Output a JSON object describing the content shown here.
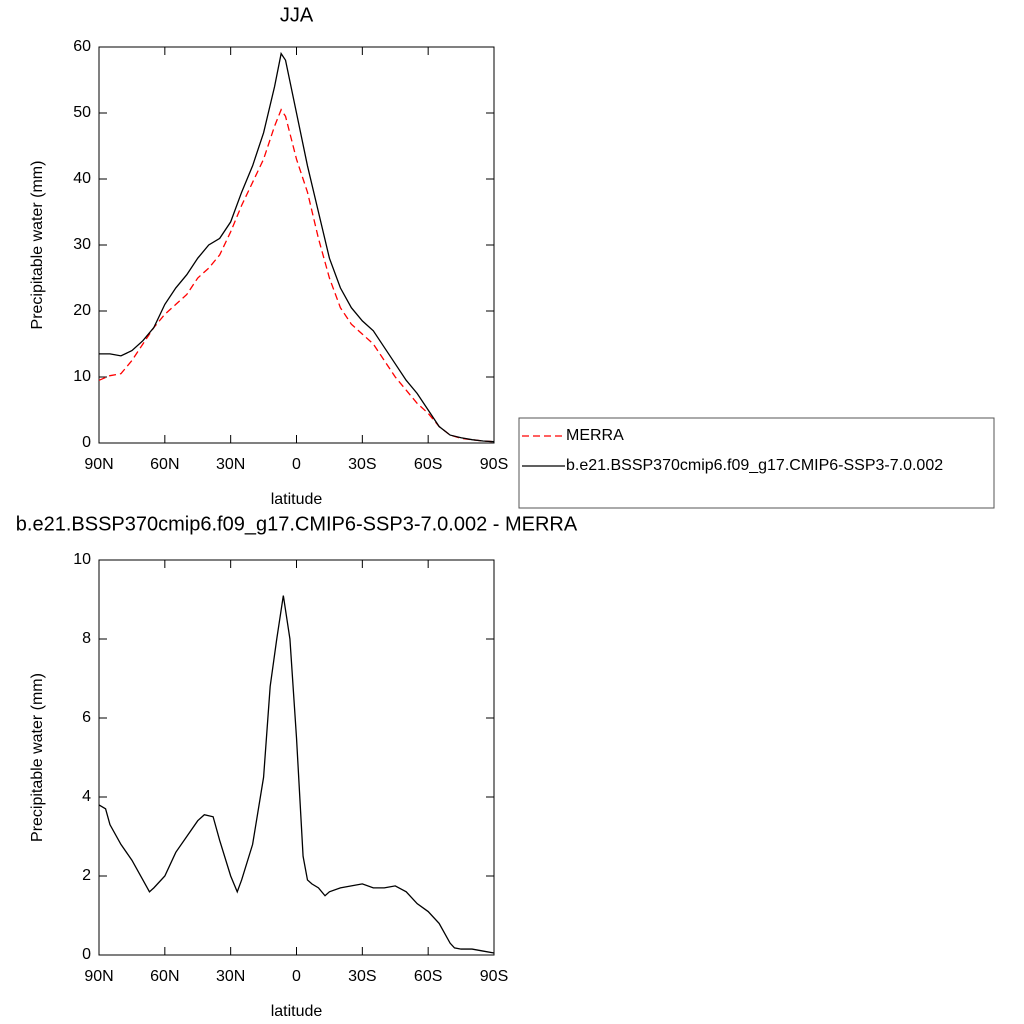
{
  "chart_data": [
    {
      "type": "line",
      "title": "JJA",
      "xlabel": "latitude",
      "ylabel": "Precipitable water (mm)",
      "x": [
        90,
        85,
        80,
        75,
        70,
        65,
        60,
        55,
        50,
        45,
        40,
        35,
        30,
        25,
        20,
        15,
        10,
        7,
        5,
        0,
        -5,
        -10,
        -15,
        -20,
        -25,
        -30,
        -35,
        -40,
        -45,
        -50,
        -55,
        -60,
        -65,
        -70,
        -75,
        -80,
        -85,
        -90
      ],
      "series": [
        {
          "name": "MERRA",
          "color": "#ff0000",
          "dashed": true,
          "values": [
            9.5,
            10.2,
            10.5,
            12.5,
            15,
            17.5,
            19.5,
            21,
            22.5,
            25,
            26.5,
            28.5,
            32,
            36,
            39.5,
            43,
            48,
            50.5,
            49.5,
            43,
            38,
            31,
            25,
            20.5,
            18,
            16.5,
            15,
            12.5,
            10,
            8,
            6,
            4.5,
            2.5,
            1.2,
            0.7,
            0.5,
            0.3,
            0.2
          ]
        },
        {
          "name": "b.e21.BSSP370cmip6.f09_g17.CMIP6-SSP3-7.0.002",
          "color": "#000000",
          "dashed": false,
          "values": [
            13.5,
            13.5,
            13.2,
            14,
            15.5,
            17.5,
            21,
            23.5,
            25.5,
            28,
            30,
            31,
            33.5,
            38,
            42,
            47,
            54,
            59,
            58,
            50,
            42,
            35,
            28,
            23.5,
            20.5,
            18.5,
            17,
            14.5,
            12,
            9.5,
            7.5,
            5,
            2.5,
            1.2,
            0.8,
            0.5,
            0.3,
            0.2
          ]
        }
      ],
      "xlim": [
        90,
        -90
      ],
      "xticks": [
        {
          "value": 90,
          "label": "90N"
        },
        {
          "value": 60,
          "label": "60N"
        },
        {
          "value": 30,
          "label": "30N"
        },
        0,
        {
          "value": -30,
          "label": "30S"
        },
        {
          "value": -60,
          "label": "60S"
        },
        {
          "value": -90,
          "label": "90S"
        }
      ],
      "ylim": [
        0,
        60
      ],
      "yticks": [
        0,
        10,
        20,
        30,
        40,
        50,
        60
      ],
      "legend": "right"
    },
    {
      "type": "line",
      "title": "b.e21.BSSP370cmip6.f09_g17.CMIP6-SSP3-7.0.002 - MERRA",
      "xlabel": "latitude",
      "ylabel": "Precipitable water (mm)",
      "x": [
        90,
        87,
        85,
        80,
        75,
        70,
        67,
        65,
        60,
        55,
        50,
        45,
        42,
        38,
        35,
        30,
        27,
        25,
        20,
        15,
        12,
        9,
        6,
        3,
        0,
        -3,
        -5,
        -7,
        -10,
        -13,
        -15,
        -20,
        -25,
        -30,
        -35,
        -40,
        -45,
        -50,
        -55,
        -60,
        -65,
        -70,
        -72,
        -75,
        -80,
        -85,
        -90
      ],
      "series": [
        {
          "name": null,
          "color": "#000000",
          "dashed": false,
          "values": [
            3.8,
            3.7,
            3.3,
            2.8,
            2.4,
            1.9,
            1.6,
            1.7,
            2.0,
            2.6,
            3.0,
            3.4,
            3.55,
            3.5,
            2.9,
            2.0,
            1.6,
            1.9,
            2.8,
            4.5,
            6.8,
            8.0,
            9.1,
            8.0,
            5.5,
            2.5,
            1.9,
            1.8,
            1.7,
            1.5,
            1.6,
            1.7,
            1.75,
            1.8,
            1.7,
            1.7,
            1.75,
            1.6,
            1.3,
            1.1,
            0.8,
            0.3,
            0.18,
            0.15,
            0.15,
            0.1,
            0.05
          ]
        }
      ],
      "xlim": [
        90,
        -90
      ],
      "xticks": [
        {
          "value": 90,
          "label": "90N"
        },
        {
          "value": 60,
          "label": "60N"
        },
        {
          "value": 30,
          "label": "30N"
        },
        0,
        {
          "value": -30,
          "label": "30S"
        },
        {
          "value": -60,
          "label": "60S"
        },
        {
          "value": -90,
          "label": "90S"
        }
      ],
      "ylim": [
        0,
        10
      ],
      "yticks": [
        0,
        2,
        4,
        6,
        8,
        10
      ]
    }
  ]
}
